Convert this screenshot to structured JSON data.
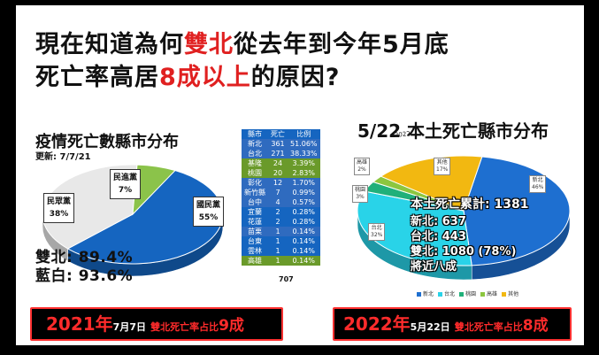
{
  "title": {
    "line1_a": "現在知道為何",
    "line1_red": "雙北",
    "line1_b": "從去年到今年5月底",
    "line2_a": "死亡率高居",
    "line2_red": "8成以上",
    "line2_b": "的原因?"
  },
  "left": {
    "title": "疫情死亡數縣市分布",
    "updated": "更新: 7/7/21",
    "stat1": "雙北: 89.4%",
    "stat2": "藍白: 93.6%",
    "banner": {
      "year": "2021年",
      "date": "7月7日",
      "desc": "雙北死亡率占比",
      "value": "9成"
    }
  },
  "right": {
    "title": "5/22 本土死亡縣市分布",
    "handwritten": "2022",
    "ann1": "本土死亡累計: 1381",
    "ann2": "新北: 637",
    "ann3": "台北: 443",
    "ann4": "雙北: 1080 (78%)",
    "ann5": "將近八成",
    "banner": {
      "year": "2022年",
      "date": "5月22日",
      "desc": "雙北死亡率占比",
      "value": "8成"
    }
  },
  "table": {
    "headers": [
      "縣市",
      "死亡",
      "比例"
    ],
    "rows": [
      [
        "新北",
        "361",
        "51.06%"
      ],
      [
        "台北",
        "271",
        "38.33%"
      ],
      [
        "基隆",
        "24",
        "3.39%"
      ],
      [
        "桃園",
        "20",
        "2.83%"
      ],
      [
        "彰化",
        "12",
        "1.70%"
      ],
      [
        "新竹縣",
        "7",
        "0.99%"
      ],
      [
        "台中",
        "4",
        "0.57%"
      ],
      [
        "宜蘭",
        "2",
        "0.28%"
      ],
      [
        "花蓮",
        "2",
        "0.28%"
      ],
      [
        "苗栗",
        "1",
        "0.14%"
      ],
      [
        "台東",
        "1",
        "0.14%"
      ],
      [
        "雲林",
        "1",
        "0.14%"
      ],
      [
        "高雄",
        "1",
        "0.14%"
      ]
    ],
    "total": "707"
  },
  "chart_data": [
    {
      "type": "pie",
      "title": "疫情死亡數縣市分布",
      "categories": [
        "國民黨",
        "民眾黨",
        "民進黨"
      ],
      "values": [
        55,
        38,
        7
      ],
      "labels": [
        "55%",
        "38%",
        "7%"
      ],
      "colors": [
        "#1565c0",
        "#e8e8e8",
        "#8bc34a"
      ]
    },
    {
      "type": "pie",
      "title": "5/22 本土死亡縣市分布",
      "categories": [
        "新北",
        "台北",
        "桃園",
        "高雄",
        "其他"
      ],
      "values": [
        46,
        32,
        3,
        2,
        17
      ],
      "labels": [
        "46%",
        "32%",
        "3%",
        "2%",
        "17%"
      ],
      "colors": [
        "#1e6fd0",
        "#29d3e8",
        "#20b07a",
        "#8cc63f",
        "#f2b811"
      ],
      "legend_position": "bottom"
    },
    {
      "type": "table",
      "columns": [
        "縣市",
        "死亡",
        "比例"
      ],
      "rows": [
        [
          "新北",
          361,
          "51.06%"
        ],
        [
          "台北",
          271,
          "38.33%"
        ],
        [
          "基隆",
          24,
          "3.39%"
        ],
        [
          "桃園",
          20,
          "2.83%"
        ],
        [
          "彰化",
          12,
          "1.70%"
        ],
        [
          "新竹縣",
          7,
          "0.99%"
        ],
        [
          "台中",
          4,
          "0.57%"
        ],
        [
          "宜蘭",
          2,
          "0.28%"
        ],
        [
          "花蓮",
          2,
          "0.28%"
        ],
        [
          "苗栗",
          1,
          "0.14%"
        ],
        [
          "台東",
          1,
          "0.14%"
        ],
        [
          "雲林",
          1,
          "0.14%"
        ],
        [
          "高雄",
          1,
          "0.14%"
        ]
      ],
      "total": 707
    }
  ]
}
